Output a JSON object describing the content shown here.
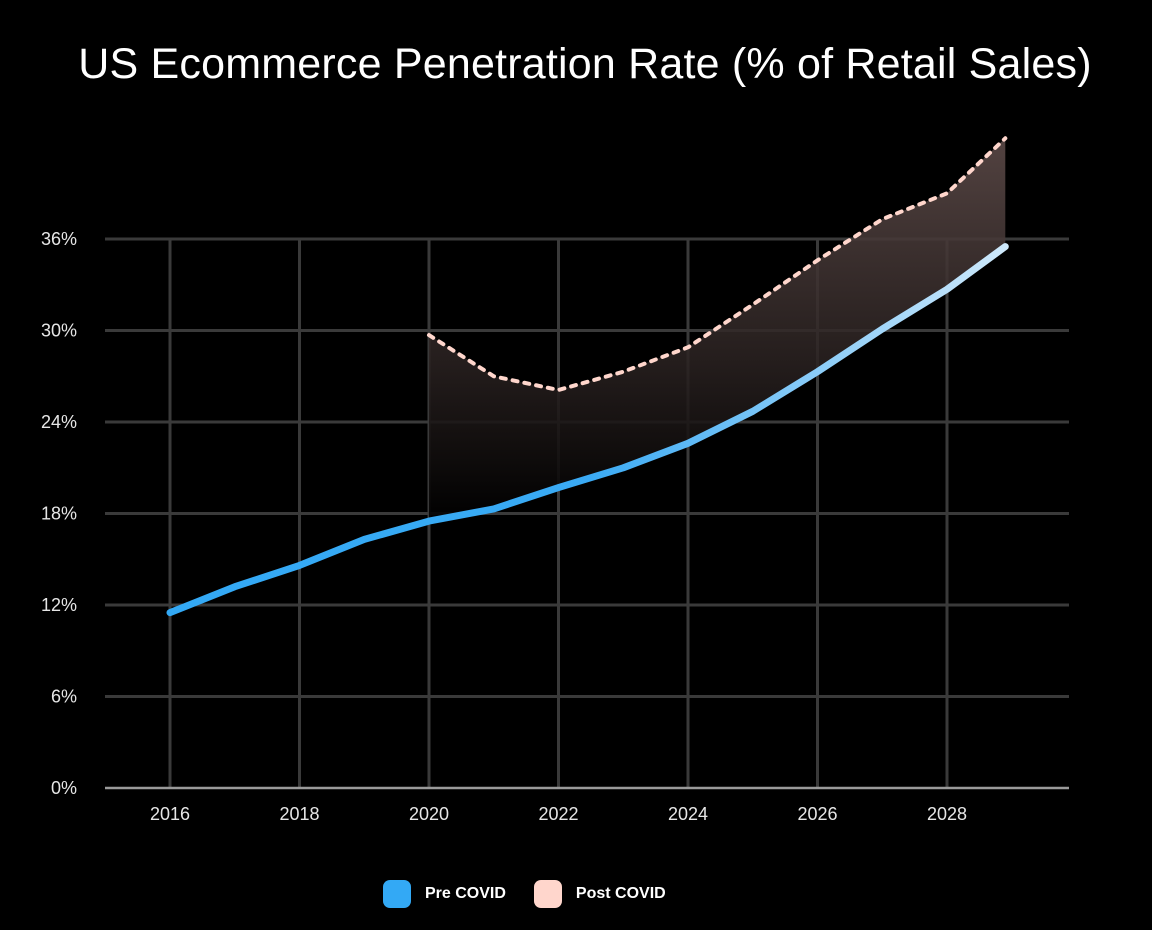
{
  "chart_data": {
    "type": "line",
    "title": "US Ecommerce Penetration Rate (% of Retail Sales)",
    "xlabel": "",
    "ylabel": "",
    "x_ticks": [
      2016,
      2018,
      2020,
      2022,
      2024,
      2026,
      2028
    ],
    "y_ticks": [
      "0%",
      "6%",
      "12%",
      "18%",
      "24%",
      "30%",
      "36%"
    ],
    "ylim": [
      0,
      36
    ],
    "xlim": [
      2015,
      2030
    ],
    "grid": true,
    "legend_position": "bottom-center",
    "series": [
      {
        "name": "Pre COVID",
        "color": "#33a9f5",
        "style": "solid",
        "points": [
          [
            2016,
            11.5
          ],
          [
            2017,
            13.2
          ],
          [
            2018,
            14.6
          ],
          [
            2019,
            16.3
          ],
          [
            2020,
            17.5
          ],
          [
            2021,
            18.3
          ],
          [
            2022,
            19.7
          ],
          [
            2023,
            21.0
          ],
          [
            2024,
            22.6
          ],
          [
            2025,
            24.7
          ],
          [
            2026,
            27.3
          ],
          [
            2027,
            30.1
          ],
          [
            2028,
            32.7
          ],
          [
            2028.9,
            35.5
          ]
        ]
      },
      {
        "name": "Post COVID",
        "color": "#ffd6cc",
        "style": "dotted",
        "points": [
          [
            2020,
            29.7
          ],
          [
            2021,
            27.0
          ],
          [
            2022,
            26.1
          ],
          [
            2023,
            27.3
          ],
          [
            2024,
            28.9
          ],
          [
            2025,
            31.7
          ],
          [
            2026,
            34.6
          ],
          [
            2027,
            37.3
          ],
          [
            2028,
            39.0
          ],
          [
            2028.9,
            42.6
          ]
        ]
      }
    ]
  }
}
